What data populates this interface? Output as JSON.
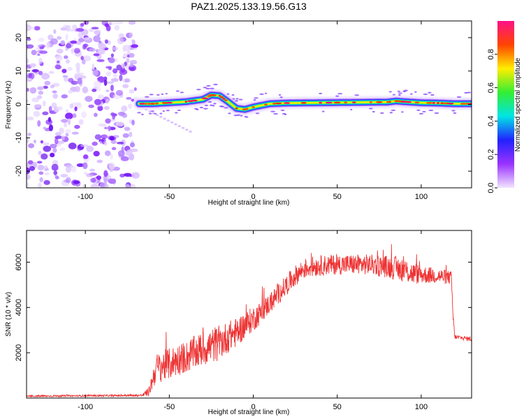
{
  "figure": {
    "title": "PAZ1.2025.133.19.56.G13"
  },
  "chart_data": [
    {
      "type": "heatmap",
      "panel": "spectrogram",
      "xlabel": "Height of straight line (km)",
      "ylabel": "Frequency (Hz)",
      "xlim": [
        -135,
        130
      ],
      "ylim": [
        -25,
        25
      ],
      "xticks": [
        -100,
        -50,
        0,
        50,
        100
      ],
      "yticks": [
        -20,
        -10,
        0,
        10,
        20
      ],
      "colorbar": {
        "label": "Normalized spectral amplitude",
        "range": [
          0,
          1
        ],
        "ticks": [
          "0.0",
          "0.2",
          "0.4",
          "0.6",
          "0.8"
        ],
        "colormap": [
          "#f2e4ff",
          "#9a33ff",
          "#2222ff",
          "#00e5e5",
          "#33ee33",
          "#ffee00",
          "#ff4400",
          "#ff1188"
        ]
      },
      "noise_region_km": [
        -135,
        -70
      ],
      "ridge_centre_hz": {
        "x": [
          -68,
          -60,
          -50,
          -40,
          -30,
          -25,
          -20,
          -15,
          -10,
          -5,
          0,
          10,
          20,
          40,
          60,
          80,
          85,
          90,
          100,
          110,
          120,
          130
        ],
        "y": [
          0.2,
          0.2,
          0.5,
          0.8,
          1.5,
          2.8,
          2.6,
          0.8,
          -1.2,
          -1.5,
          -0.8,
          0.2,
          0.4,
          0.5,
          0.6,
          0.7,
          1.0,
          0.8,
          0.5,
          0.4,
          0.2,
          0.2
        ]
      },
      "grid": false,
      "legend": "none"
    },
    {
      "type": "line",
      "panel": "snr",
      "xlabel": "Height of straight line (km)",
      "ylabel": "SNR (10 * v/v)",
      "xlim": [
        -135,
        130
      ],
      "ylim": [
        0,
        7400
      ],
      "xticks": [
        -100,
        -50,
        0,
        50,
        100
      ],
      "yticks": [
        2000,
        4000,
        6000
      ],
      "color": "#ee3333",
      "series": [
        {
          "x": [
            -135,
            -120,
            -100,
            -80,
            -66,
            -62,
            -58,
            -55,
            -50,
            -45,
            -40,
            -35,
            -30,
            -25,
            -22,
            -20,
            -15,
            -10,
            -5,
            0,
            5,
            10,
            15,
            20,
            25,
            30,
            35,
            40,
            50,
            60,
            70,
            80,
            88,
            95,
            100,
            110,
            118,
            119,
            120,
            125,
            130
          ],
          "y": [
            80,
            90,
            100,
            110,
            120,
            300,
            1300,
            1400,
            1500,
            1700,
            1800,
            2000,
            2150,
            2300,
            2400,
            2450,
            2700,
            2900,
            3200,
            3500,
            3800,
            4200,
            4600,
            5000,
            5400,
            5700,
            5800,
            5850,
            5900,
            5900,
            5900,
            5800,
            5700,
            5500,
            5450,
            5400,
            5300,
            3500,
            2700,
            2650,
            2600
          ],
          "spread": [
            40,
            40,
            40,
            40,
            60,
            200,
            650,
            700,
            700,
            700,
            700,
            750,
            750,
            800,
            800,
            750,
            700,
            650,
            600,
            550,
            500,
            450,
            450,
            450,
            450,
            450,
            450,
            450,
            450,
            450,
            450,
            500,
            550,
            500,
            400,
            350,
            300,
            300,
            100,
            100,
            100
          ]
        }
      ],
      "grid": false,
      "legend": "none"
    }
  ]
}
